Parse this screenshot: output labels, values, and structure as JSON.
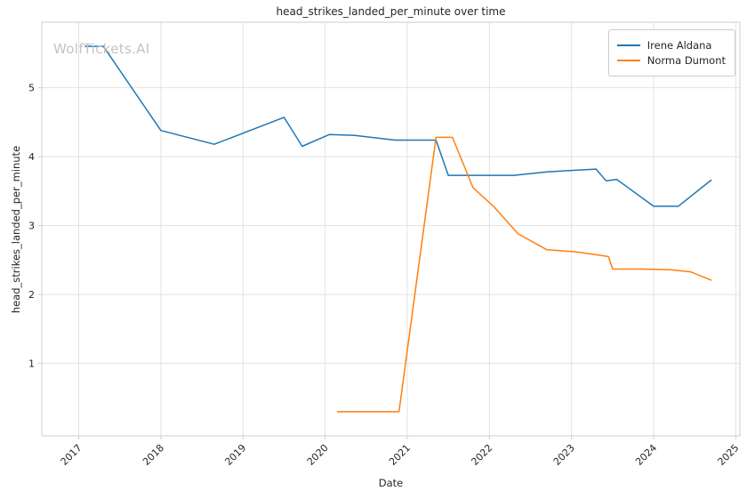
{
  "watermark": "WolfTickets.AI",
  "colors": {
    "grid": "#e3e3e3",
    "spine": "#cccccc",
    "tick_text": "#262626",
    "watermark": "#c3c3c3"
  },
  "chart_data": {
    "type": "line",
    "title": "head_strikes_landed_per_minute over time",
    "xlabel": "Date",
    "ylabel": "head_strikes_landed_per_minute",
    "x_ticks": [
      2017,
      2018,
      2019,
      2020,
      2021,
      2022,
      2023,
      2024,
      2025
    ],
    "y_ticks": [
      1,
      2,
      3,
      4,
      5
    ],
    "xlim": [
      2016.55,
      2025.05
    ],
    "ylim": [
      -0.05,
      5.95
    ],
    "grid": true,
    "legend_position": "upper right",
    "series": [
      {
        "name": "Irene Aldana",
        "color": "#1f77b4",
        "x": [
          2017.08,
          2017.3,
          2018.0,
          2018.65,
          2019.5,
          2019.72,
          2020.05,
          2020.35,
          2020.85,
          2021.35,
          2021.5,
          2021.75,
          2022.3,
          2022.7,
          2023.0,
          2023.3,
          2023.42,
          2023.55,
          2024.0,
          2024.3,
          2024.7
        ],
        "y": [
          5.6,
          5.6,
          4.38,
          4.18,
          4.57,
          4.15,
          4.32,
          4.31,
          4.24,
          4.24,
          3.73,
          3.73,
          3.73,
          3.78,
          3.8,
          3.82,
          3.65,
          3.67,
          3.28,
          3.28,
          3.66
        ]
      },
      {
        "name": "Norma Dumont",
        "color": "#ff7f0e",
        "x": [
          2020.15,
          2020.55,
          2020.9,
          2021.35,
          2021.55,
          2021.8,
          2022.05,
          2022.35,
          2022.7,
          2023.05,
          2023.35,
          2023.45,
          2023.5,
          2023.85,
          2024.2,
          2024.45,
          2024.7
        ],
        "y": [
          0.3,
          0.3,
          0.3,
          4.28,
          4.28,
          3.55,
          3.28,
          2.88,
          2.65,
          2.62,
          2.57,
          2.55,
          2.37,
          2.37,
          2.36,
          2.33,
          2.21
        ]
      }
    ]
  }
}
